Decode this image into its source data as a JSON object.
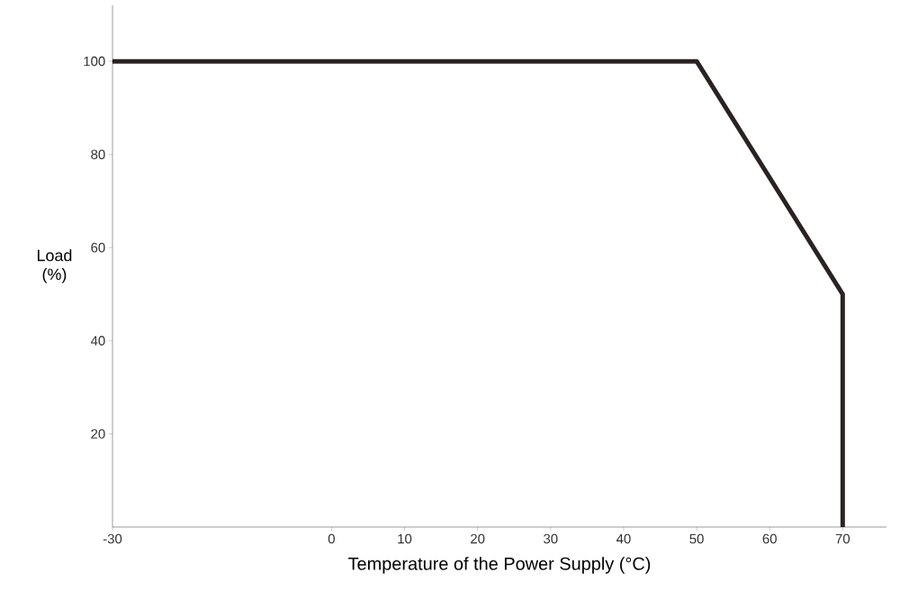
{
  "chart_data": {
    "type": "line",
    "xlabel": "Temperature of the Power Supply (°C)",
    "ylabel": "Load (%)",
    "x": [
      -30,
      50,
      70,
      70
    ],
    "series": [
      {
        "color": "#2b2222",
        "values": [
          100,
          100,
          50,
          0
        ]
      }
    ],
    "xlim": [
      -30,
      76
    ],
    "xticks": [
      -30,
      0,
      10,
      20,
      30,
      40,
      50,
      60,
      70
    ],
    "ylim": [
      0,
      112
    ],
    "yticks": [
      20,
      40,
      60,
      80,
      100
    ],
    "marker": "none",
    "line_style": "solid"
  }
}
